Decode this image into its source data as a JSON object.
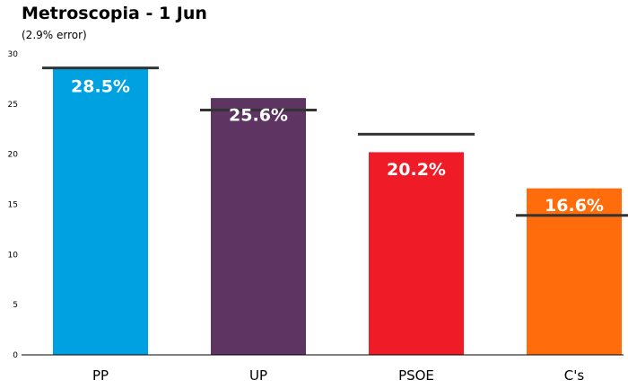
{
  "chart_data": {
    "type": "bar",
    "title": "Metroscopia - 1 Jun",
    "subtitle": "(2.9% error)",
    "categories": [
      "PP",
      "UP",
      "PSOE",
      "C's"
    ],
    "values": [
      28.5,
      25.6,
      20.2,
      16.6
    ],
    "labels": [
      "28.5%",
      "25.6%",
      "20.2%",
      "16.6%"
    ],
    "reference_values": [
      28.6,
      24.4,
      22.0,
      13.9
    ],
    "colors": [
      "#00a1e0",
      "#5d3462",
      "#ef1c27",
      "#ff6c0c"
    ],
    "reference_color": "#333333",
    "ylim": [
      0,
      30
    ],
    "yticks": [
      0,
      5,
      10,
      15,
      20,
      25,
      30
    ],
    "xlabel": "",
    "ylabel": "",
    "grid": false,
    "legend": "none"
  }
}
